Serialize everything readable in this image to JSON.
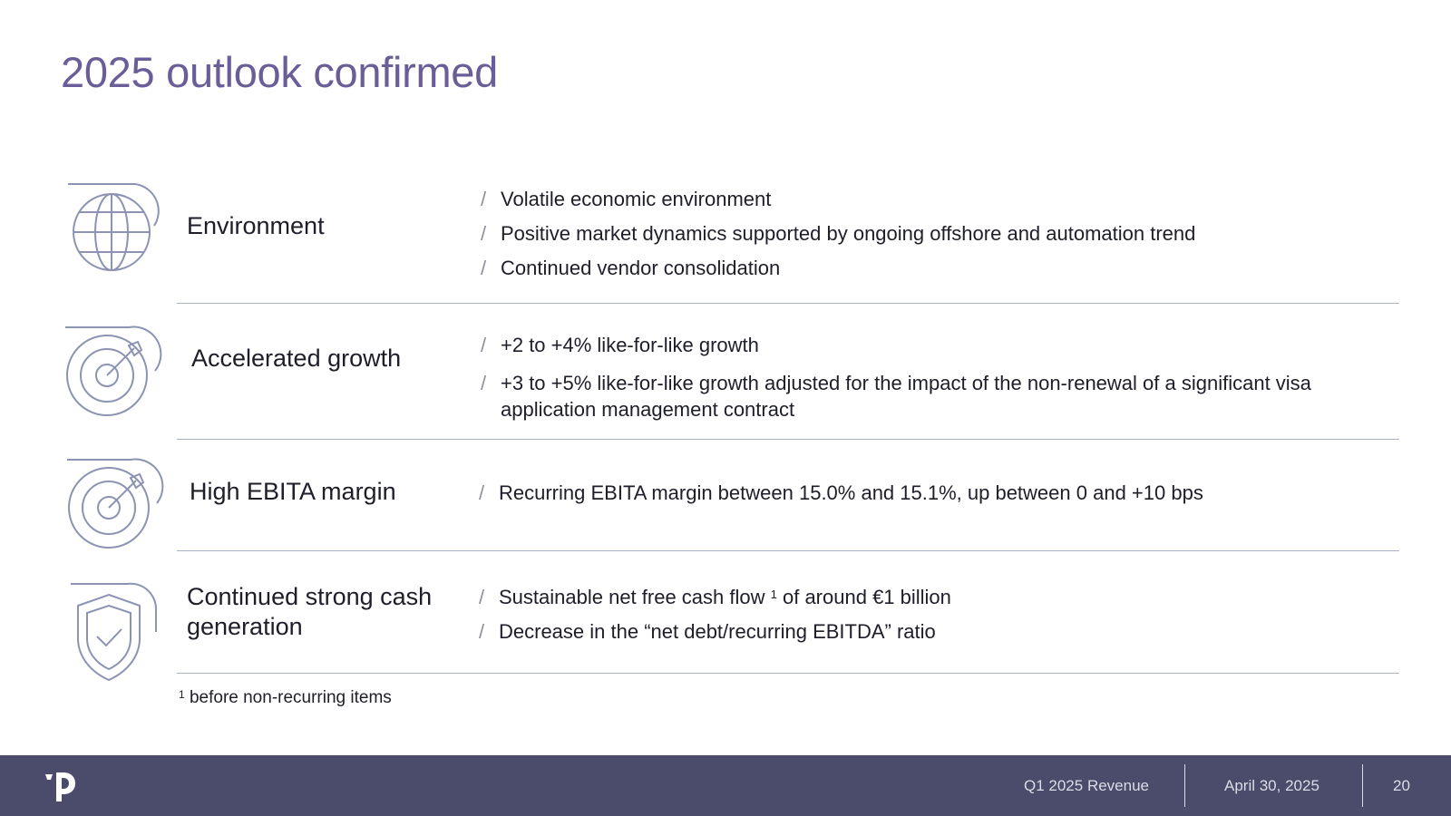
{
  "title": "2025 outlook confirmed",
  "rows": [
    {
      "label": "Environment",
      "icon": "globe-icon",
      "bullets": [
        "Volatile economic environment",
        "Positive market dynamics supported by ongoing offshore and automation trend",
        "Continued vendor consolidation"
      ]
    },
    {
      "label": "Accelerated growth",
      "icon": "target-icon",
      "bullets": [
        "+2 to +4% like-for-like growth",
        "+3 to +5% like-for-like growth adjusted for the impact of the non-renewal of a significant visa application management contract"
      ]
    },
    {
      "label": "High EBITA margin",
      "icon": "target-icon",
      "bullets": [
        "Recurring EBITA margin between 15.0% and 15.1%,  up between 0 and +10 bps"
      ]
    },
    {
      "label": "Continued strong cash generation",
      "icon": "shield-check-icon",
      "bullets": [
        {
          "before": "Sustainable net free cash flow",
          "sup": "1",
          "after": " of around €1 billion"
        },
        "Decrease in the “net debt/recurring EBITDA” ratio"
      ]
    }
  ],
  "footnote": {
    "marker": "1",
    "text": " before non-recurring items"
  },
  "footer": {
    "report": "Q1 2025 Revenue",
    "date": "April 30, 2025",
    "page": "20"
  },
  "colors": {
    "title": "#6b5e98",
    "icon_stroke": "#8c93b3",
    "divider": "#aab0c6",
    "footer_bg": "#4b4b6b"
  }
}
